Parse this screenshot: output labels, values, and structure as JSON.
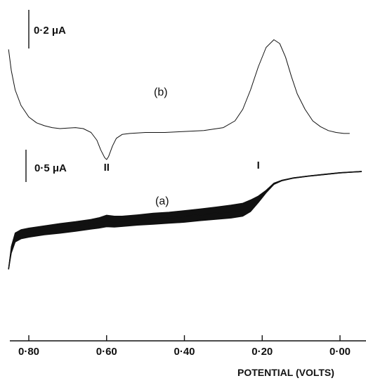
{
  "chart_data": {
    "type": "line",
    "title": "",
    "xlabel": "POTENTIAL (VOLTS)",
    "ylabel": "",
    "xlim": [
      0.852,
      -0.055
    ],
    "x_reversed": true,
    "x_ticks": [
      {
        "value": 0.8,
        "label": "0·80"
      },
      {
        "value": 0.6,
        "label": "0·60"
      },
      {
        "value": 0.4,
        "label": "0·40"
      },
      {
        "value": 0.2,
        "label": "0·20"
      },
      {
        "value": 0.0,
        "label": "0·00"
      }
    ],
    "grid": false,
    "legend": "none",
    "scale_bars": [
      {
        "label": "0·2 μA",
        "applies_to": "(b)",
        "value_uA": 0.2
      },
      {
        "label": "0·5 μA",
        "applies_to": "(a)",
        "value_uA": 0.5
      }
    ],
    "annotations": [
      {
        "text": "II",
        "x": 0.6
      },
      {
        "text": "I",
        "x": 0.21
      }
    ],
    "series": [
      {
        "name": "(b)",
        "units": "μA",
        "x": [
          0.852,
          0.845,
          0.835,
          0.82,
          0.8,
          0.78,
          0.76,
          0.74,
          0.72,
          0.7,
          0.68,
          0.66,
          0.64,
          0.625,
          0.615,
          0.605,
          0.6,
          0.595,
          0.585,
          0.575,
          0.56,
          0.54,
          0.5,
          0.45,
          0.4,
          0.35,
          0.3,
          0.27,
          0.25,
          0.23,
          0.21,
          0.19,
          0.17,
          0.155,
          0.14,
          0.125,
          0.11,
          0.09,
          0.07,
          0.05,
          0.03,
          0.01,
          -0.01,
          -0.025
        ],
        "y": [
          0.41,
          0.3,
          0.2,
          0.12,
          0.06,
          0.03,
          0.015,
          0.005,
          0.0,
          0.003,
          0.005,
          0.0,
          -0.02,
          -0.06,
          -0.11,
          -0.15,
          -0.16,
          -0.145,
          -0.09,
          -0.05,
          -0.03,
          -0.025,
          -0.02,
          -0.02,
          -0.015,
          -0.01,
          0.005,
          0.04,
          0.1,
          0.2,
          0.32,
          0.42,
          0.46,
          0.44,
          0.37,
          0.27,
          0.18,
          0.1,
          0.04,
          0.01,
          -0.01,
          -0.02,
          -0.025,
          -0.025
        ]
      },
      {
        "name": "(a)",
        "units": "μA",
        "x": [
          0.852,
          0.845,
          0.835,
          0.82,
          0.8,
          0.76,
          0.72,
          0.68,
          0.64,
          0.62,
          0.6,
          0.58,
          0.56,
          0.52,
          0.48,
          0.44,
          0.4,
          0.36,
          0.32,
          0.28,
          0.25,
          0.23,
          0.21,
          0.19,
          0.17,
          0.15,
          0.12,
          0.08,
          0.04,
          0.0,
          -0.04,
          -0.055
        ],
        "y": [
          -0.5,
          -0.2,
          -0.01,
          0.04,
          0.065,
          0.1,
          0.13,
          0.16,
          0.195,
          0.215,
          0.245,
          0.235,
          0.24,
          0.26,
          0.28,
          0.295,
          0.315,
          0.34,
          0.365,
          0.39,
          0.42,
          0.48,
          0.58,
          0.7,
          0.82,
          0.87,
          0.91,
          0.94,
          0.965,
          0.99,
          1.005,
          1.01
        ],
        "band_halfwidth_uA": [
          0.0,
          0.05,
          0.07,
          0.07,
          0.07,
          0.07,
          0.075,
          0.075,
          0.075,
          0.08,
          0.09,
          0.085,
          0.08,
          0.08,
          0.085,
          0.085,
          0.09,
          0.09,
          0.095,
          0.1,
          0.1,
          0.09,
          0.05,
          0.02,
          0.01,
          0.005,
          0.003,
          0.003,
          0.003,
          0.003,
          0.003,
          0.003
        ]
      }
    ]
  }
}
